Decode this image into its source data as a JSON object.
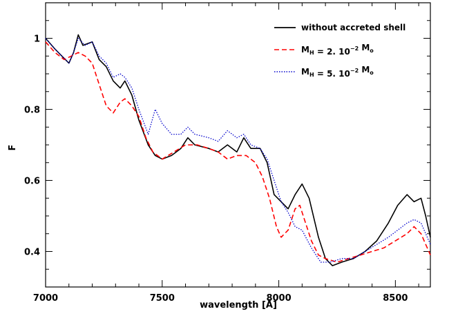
{
  "chart_data": {
    "type": "line",
    "title": "",
    "xlabel": "wavelength [Å]",
    "ylabel": "F",
    "xlim": [
      7000,
      8650
    ],
    "ylim": [
      0.3,
      1.1
    ],
    "grid": false,
    "legend_position": "top-right",
    "x_ticks": [
      7000,
      7500,
      8000,
      8500
    ],
    "y_ticks": [
      0.4,
      0.6,
      0.8,
      1.0
    ],
    "x_tick_labels": [
      "7000",
      "7500",
      "8000",
      "8500"
    ],
    "y_tick_labels": [
      "0.4",
      "0.6",
      "0.8",
      "1"
    ],
    "series": [
      {
        "name": "without accreted shell",
        "legend": {
          "main": "without accreted shell"
        },
        "color": "#000000",
        "style": "solid",
        "points": [
          [
            7000,
            1.0
          ],
          [
            7040,
            0.97
          ],
          [
            7070,
            0.95
          ],
          [
            7100,
            0.93
          ],
          [
            7120,
            0.96
          ],
          [
            7140,
            1.01
          ],
          [
            7160,
            0.98
          ],
          [
            7200,
            0.99
          ],
          [
            7230,
            0.94
          ],
          [
            7260,
            0.92
          ],
          [
            7290,
            0.88
          ],
          [
            7320,
            0.86
          ],
          [
            7340,
            0.88
          ],
          [
            7370,
            0.84
          ],
          [
            7400,
            0.77
          ],
          [
            7440,
            0.7
          ],
          [
            7470,
            0.67
          ],
          [
            7500,
            0.66
          ],
          [
            7540,
            0.67
          ],
          [
            7580,
            0.69
          ],
          [
            7610,
            0.72
          ],
          [
            7640,
            0.7
          ],
          [
            7700,
            0.69
          ],
          [
            7740,
            0.68
          ],
          [
            7780,
            0.7
          ],
          [
            7820,
            0.68
          ],
          [
            7850,
            0.72
          ],
          [
            7880,
            0.69
          ],
          [
            7920,
            0.69
          ],
          [
            7950,
            0.65
          ],
          [
            7980,
            0.56
          ],
          [
            8010,
            0.54
          ],
          [
            8040,
            0.52
          ],
          [
            8070,
            0.56
          ],
          [
            8100,
            0.59
          ],
          [
            8130,
            0.55
          ],
          [
            8170,
            0.44
          ],
          [
            8200,
            0.38
          ],
          [
            8230,
            0.36
          ],
          [
            8270,
            0.37
          ],
          [
            8320,
            0.38
          ],
          [
            8370,
            0.4
          ],
          [
            8420,
            0.43
          ],
          [
            8470,
            0.48
          ],
          [
            8510,
            0.53
          ],
          [
            8550,
            0.56
          ],
          [
            8580,
            0.54
          ],
          [
            8610,
            0.55
          ],
          [
            8630,
            0.5
          ],
          [
            8650,
            0.44
          ]
        ]
      },
      {
        "name": "M_H = 2. 10^-2 M_o",
        "legend": {
          "main": "M",
          "sub1": "H",
          "mid": " = 2. 10",
          "sup": "−2",
          "unit": " M",
          "sub2": "o"
        },
        "color": "#ff0000",
        "style": "dashed",
        "points": [
          [
            7000,
            0.99
          ],
          [
            7040,
            0.96
          ],
          [
            7080,
            0.94
          ],
          [
            7110,
            0.95
          ],
          [
            7140,
            0.96
          ],
          [
            7170,
            0.95
          ],
          [
            7200,
            0.93
          ],
          [
            7230,
            0.87
          ],
          [
            7260,
            0.81
          ],
          [
            7290,
            0.79
          ],
          [
            7320,
            0.82
          ],
          [
            7340,
            0.83
          ],
          [
            7370,
            0.81
          ],
          [
            7400,
            0.78
          ],
          [
            7430,
            0.72
          ],
          [
            7460,
            0.68
          ],
          [
            7500,
            0.66
          ],
          [
            7550,
            0.68
          ],
          [
            7600,
            0.7
          ],
          [
            7650,
            0.7
          ],
          [
            7700,
            0.69
          ],
          [
            7740,
            0.68
          ],
          [
            7780,
            0.66
          ],
          [
            7820,
            0.67
          ],
          [
            7860,
            0.67
          ],
          [
            7900,
            0.65
          ],
          [
            7930,
            0.61
          ],
          [
            7960,
            0.55
          ],
          [
            7990,
            0.47
          ],
          [
            8010,
            0.44
          ],
          [
            8040,
            0.46
          ],
          [
            8070,
            0.52
          ],
          [
            8090,
            0.53
          ],
          [
            8110,
            0.49
          ],
          [
            8140,
            0.43
          ],
          [
            8170,
            0.39
          ],
          [
            8200,
            0.38
          ],
          [
            8250,
            0.37
          ],
          [
            8300,
            0.38
          ],
          [
            8350,
            0.39
          ],
          [
            8400,
            0.4
          ],
          [
            8450,
            0.41
          ],
          [
            8500,
            0.43
          ],
          [
            8550,
            0.45
          ],
          [
            8580,
            0.47
          ],
          [
            8610,
            0.45
          ],
          [
            8650,
            0.39
          ]
        ]
      },
      {
        "name": "M_H = 5. 10^-2 M_o",
        "legend": {
          "main": "M",
          "sub1": "H",
          "mid": " = 5. 10",
          "sup": "−2",
          "unit": " M",
          "sub2": "o"
        },
        "color": "#0000cc",
        "style": "dotted",
        "points": [
          [
            7000,
            1.0
          ],
          [
            7040,
            0.97
          ],
          [
            7070,
            0.95
          ],
          [
            7100,
            0.93
          ],
          [
            7120,
            0.96
          ],
          [
            7140,
            1.0
          ],
          [
            7170,
            0.98
          ],
          [
            7200,
            0.99
          ],
          [
            7230,
            0.95
          ],
          [
            7260,
            0.93
          ],
          [
            7290,
            0.89
          ],
          [
            7320,
            0.9
          ],
          [
            7340,
            0.89
          ],
          [
            7370,
            0.86
          ],
          [
            7400,
            0.8
          ],
          [
            7440,
            0.73
          ],
          [
            7470,
            0.8
          ],
          [
            7500,
            0.76
          ],
          [
            7540,
            0.73
          ],
          [
            7580,
            0.73
          ],
          [
            7610,
            0.75
          ],
          [
            7640,
            0.73
          ],
          [
            7700,
            0.72
          ],
          [
            7740,
            0.71
          ],
          [
            7780,
            0.74
          ],
          [
            7820,
            0.72
          ],
          [
            7850,
            0.73
          ],
          [
            7880,
            0.7
          ],
          [
            7920,
            0.69
          ],
          [
            7950,
            0.66
          ],
          [
            7980,
            0.6
          ],
          [
            8010,
            0.54
          ],
          [
            8040,
            0.51
          ],
          [
            8070,
            0.47
          ],
          [
            8100,
            0.46
          ],
          [
            8140,
            0.41
          ],
          [
            8180,
            0.37
          ],
          [
            8220,
            0.37
          ],
          [
            8270,
            0.38
          ],
          [
            8320,
            0.38
          ],
          [
            8370,
            0.4
          ],
          [
            8420,
            0.42
          ],
          [
            8470,
            0.44
          ],
          [
            8510,
            0.46
          ],
          [
            8550,
            0.48
          ],
          [
            8580,
            0.49
          ],
          [
            8610,
            0.48
          ],
          [
            8650,
            0.42
          ]
        ]
      }
    ]
  }
}
